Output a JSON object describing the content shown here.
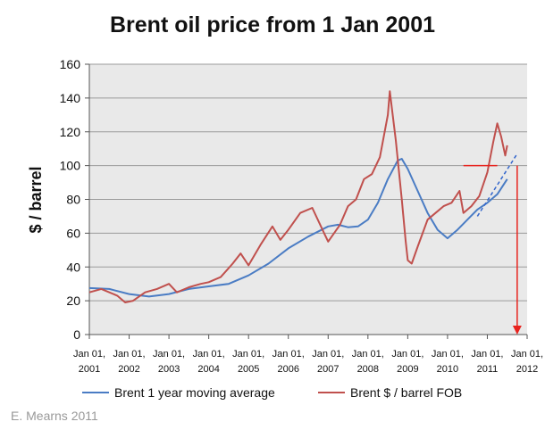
{
  "chart_data": {
    "type": "line",
    "title": "Brent oil price from 1 Jan 2001",
    "xlabel": "",
    "ylabel": "$ / barrel",
    "ylim": [
      0,
      160
    ],
    "yticks": [
      0,
      20,
      40,
      60,
      80,
      100,
      120,
      140,
      160
    ],
    "xlim": [
      2001,
      2012
    ],
    "xticks": [
      {
        "year": 2001,
        "line1": "Jan 01,",
        "line2": "2001"
      },
      {
        "year": 2002,
        "line1": "Jan 01,",
        "line2": "2002"
      },
      {
        "year": 2003,
        "line1": "Jan 01,",
        "line2": "2003"
      },
      {
        "year": 2004,
        "line1": "Jan 01,",
        "line2": "2004"
      },
      {
        "year": 2005,
        "line1": "Jan 01,",
        "line2": "2005"
      },
      {
        "year": 2006,
        "line1": "Jan 01,",
        "line2": "2006"
      },
      {
        "year": 2007,
        "line1": "Jan 01,",
        "line2": "2007"
      },
      {
        "year": 2008,
        "line1": "Jan 01,",
        "line2": "2008"
      },
      {
        "year": 2009,
        "line1": "Jan 01,",
        "line2": "2009"
      },
      {
        "year": 2010,
        "line1": "Jan 01,",
        "line2": "2010"
      },
      {
        "year": 2011,
        "line1": "Jan 01,",
        "line2": "2011"
      },
      {
        "year": 2012,
        "line1": "Jan 01,",
        "line2": "2012"
      }
    ],
    "grid": true,
    "legend_position": "bottom",
    "series": [
      {
        "name": "Brent 1 year moving average",
        "color": "#4a7cc4",
        "x": [
          2001.0,
          2001.5,
          2002.0,
          2002.5,
          2003.0,
          2003.5,
          2004.0,
          2004.5,
          2005.0,
          2005.5,
          2006.0,
          2006.5,
          2007.0,
          2007.25,
          2007.5,
          2007.75,
          2008.0,
          2008.25,
          2008.5,
          2008.75,
          2008.85,
          2009.0,
          2009.25,
          2009.5,
          2009.75,
          2010.0,
          2010.25,
          2010.5,
          2010.75,
          2011.0,
          2011.25,
          2011.5
        ],
        "y": [
          27.5,
          27,
          24,
          22.5,
          24,
          27,
          28.5,
          30,
          35,
          42,
          51,
          58,
          64,
          65,
          63.5,
          64,
          68,
          78,
          92,
          103,
          104,
          98,
          85,
          72,
          62,
          57,
          62,
          68,
          74,
          78,
          83,
          92
        ]
      },
      {
        "name": "Brent $ / barrel FOB",
        "color": "#c0504d",
        "x": [
          2001.0,
          2001.3,
          2001.7,
          2001.9,
          2002.1,
          2002.4,
          2002.7,
          2003.0,
          2003.2,
          2003.5,
          2003.8,
          2004.0,
          2004.3,
          2004.6,
          2004.8,
          2005.0,
          2005.3,
          2005.6,
          2005.8,
          2006.0,
          2006.3,
          2006.6,
          2006.9,
          2007.0,
          2007.3,
          2007.5,
          2007.7,
          2007.9,
          2008.1,
          2008.3,
          2008.5,
          2008.55,
          2008.7,
          2008.85,
          2008.95,
          2009.0,
          2009.1,
          2009.25,
          2009.5,
          2009.7,
          2009.9,
          2010.1,
          2010.3,
          2010.4,
          2010.6,
          2010.8,
          2011.0,
          2011.15,
          2011.25,
          2011.35,
          2011.45,
          2011.5
        ],
        "y": [
          25,
          27,
          23,
          19,
          20,
          25,
          27,
          30,
          25,
          28,
          30,
          31,
          34,
          42,
          48,
          41,
          53,
          64,
          56,
          62,
          72,
          75,
          60,
          55,
          65,
          76,
          80,
          92,
          95,
          105,
          130,
          144,
          115,
          80,
          55,
          44,
          42,
          52,
          68,
          72,
          76,
          78,
          85,
          72,
          76,
          82,
          96,
          114,
          125,
          117,
          106,
          112
        ]
      }
    ],
    "annotations": {
      "trend_line": {
        "x": [
          2010.75,
          2011.75
        ],
        "y": [
          70,
          107
        ],
        "color": "#3366cc"
      },
      "horizontal_marker": {
        "x": [
          2010.4,
          2011.25
        ],
        "y": 100,
        "color": "#e8231e"
      },
      "vertical_arrow": {
        "x": 2011.75,
        "y_from": 100,
        "y_to": 0,
        "color": "#e8231e"
      }
    }
  },
  "credit": "E. Mearns 2011"
}
